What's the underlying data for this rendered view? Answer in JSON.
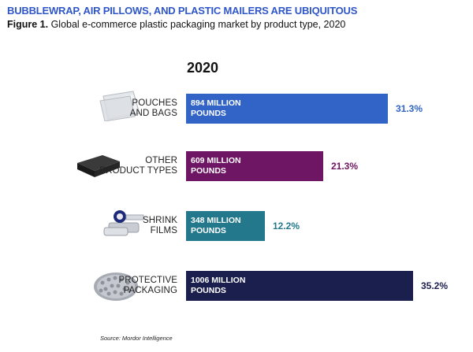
{
  "header": {
    "title": "BUBBLEWRAP, AIR PILLOWS, AND PLASTIC MAILERS ARE UBIQUITOUS",
    "figure_number": "Figure 1.",
    "caption": " Global e-commerce plastic packaging market by product type, 2020"
  },
  "chart_data": {
    "type": "bar",
    "orientation": "horizontal",
    "year": "2020",
    "categories": [
      {
        "label_line1": "POUCHES",
        "label_line2": "AND BAGS",
        "value_line1": "894 MILLION",
        "value_line2": "POUNDS",
        "value": 894,
        "percent_label": "31.3%",
        "percent": 31.3,
        "color": "#3264c8",
        "icon": "plastic-mailer-icon"
      },
      {
        "label_line1": "OTHER",
        "label_line2": "PRODUCT TYPES",
        "value_line1": "609 MILLION",
        "value_line2": "POUNDS",
        "value": 609,
        "percent_label": "21.3%",
        "percent": 21.3,
        "color": "#6e1563",
        "icon": "black-box-icon"
      },
      {
        "label_line1": "SHRINK",
        "label_line2": "FILMS",
        "value_line1": "348 MILLION",
        "value_line2": "POUNDS",
        "value": 348,
        "percent_label": "12.2%",
        "percent": 12.2,
        "color": "#23788c",
        "icon": "shrink-film-roll-icon"
      },
      {
        "label_line1": "PROTECTIVE",
        "label_line2": "PACKAGING",
        "value_line1": "1006 MILLION",
        "value_line2": "POUNDS",
        "value": 1006,
        "percent_label": "35.2%",
        "percent": 35.2,
        "color": "#1b1f4e",
        "icon": "bubble-wrap-roll-icon"
      }
    ]
  },
  "footer": {
    "source": "Source: Mordor Intelligence"
  }
}
